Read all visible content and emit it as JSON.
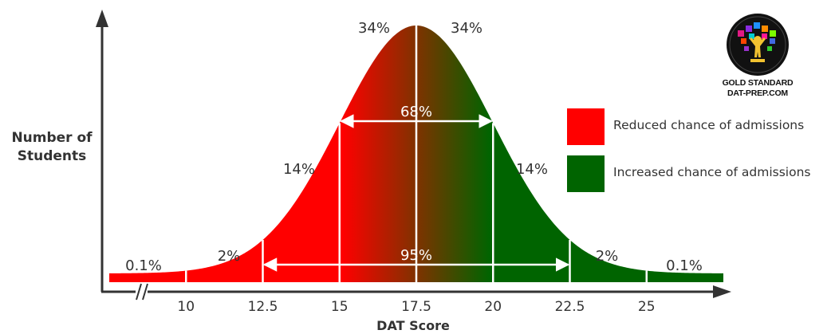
{
  "chart_data": {
    "type": "area",
    "xlabel": "DAT Score",
    "ylabel_lines": [
      "Number of",
      "Students"
    ],
    "x_ticks": [
      "10",
      "12.5",
      "15",
      "17.5",
      "20",
      "22.5",
      "25"
    ],
    "xlim": [
      7.5,
      27.5
    ],
    "axis_break": true,
    "mean": 17.5,
    "std_dev": 2.5,
    "bands": [
      {
        "from": 7.5,
        "to": 10,
        "percent": "0.1%",
        "color": "#ff0000"
      },
      {
        "from": 10,
        "to": 12.5,
        "percent": "2%",
        "color": "#ff0000"
      },
      {
        "from": 12.5,
        "to": 15,
        "percent": "14%",
        "color": "#ff0000"
      },
      {
        "from": 15,
        "to": 17.5,
        "percent": "34%",
        "color": "#ff0000"
      },
      {
        "from": 17.5,
        "to": 20,
        "percent": "34%",
        "color": "#006400"
      },
      {
        "from": 20,
        "to": 22.5,
        "percent": "14%",
        "color": "#006400"
      },
      {
        "from": 22.5,
        "to": 25,
        "percent": "2%",
        "color": "#006400"
      },
      {
        "from": 25,
        "to": 27.5,
        "percent": "0.1%",
        "color": "#006400"
      }
    ],
    "ranges": [
      {
        "from": 15,
        "to": 20,
        "label": "68%"
      },
      {
        "from": 12.5,
        "to": 22.5,
        "label": "95%"
      }
    ],
    "colors": {
      "reduced": "#ff0000",
      "increased": "#006400",
      "axis": "#333333",
      "text": "#333333"
    }
  },
  "legend": {
    "items": [
      {
        "label": "Reduced chance of admissions",
        "color": "#ff0000"
      },
      {
        "label": "Increased chance of admissions",
        "color": "#006400"
      }
    ]
  },
  "logo": {
    "line1": "GOLD STANDARD",
    "line2": "DAT-PREP.COM"
  }
}
